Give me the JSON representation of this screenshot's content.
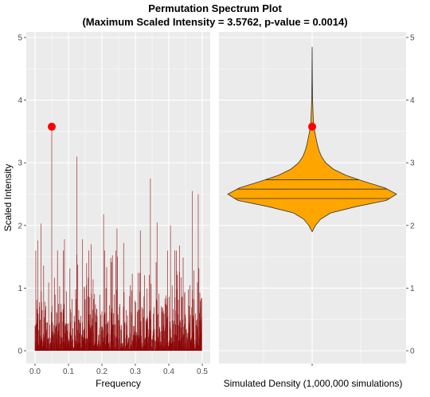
{
  "chart_data": {
    "type": "bar",
    "title": "Permutation Spectrum Plot",
    "subtitle": "(Maximum Scaled Intensity = 3.5762, p-value = 0.0014)",
    "ylabel": "Scaled Intensity",
    "ylim": [
      0,
      5
    ],
    "y_ticks": [
      "0",
      "1",
      "2",
      "3",
      "4",
      "5"
    ],
    "colors": {
      "panel_bg": "#ebebeb",
      "grid": "#ffffff",
      "bar": "#8b0000",
      "marker": "#ff0000",
      "violin_fill": "#ffa500",
      "violin_stroke": "#333333"
    },
    "left_panel": {
      "xlabel": "Frequency",
      "xlim": [
        0,
        0.5
      ],
      "x_ticks": [
        "0.0",
        "0.1",
        "0.2",
        "0.3",
        "0.4",
        "0.5"
      ],
      "observed_peak": {
        "frequency": 0.05,
        "intensity": 3.5762
      },
      "notable_peaks": [
        {
          "frequency": 0.05,
          "intensity": 3.58
        },
        {
          "frequency": 0.125,
          "intensity": 3.1
        },
        {
          "frequency": 0.345,
          "intensity": 2.75
        },
        {
          "frequency": 0.47,
          "intensity": 2.55
        },
        {
          "frequency": 0.488,
          "intensity": 2.5
        },
        {
          "frequency": 0.205,
          "intensity": 2.18
        },
        {
          "frequency": 0.018,
          "intensity": 2.03
        },
        {
          "frequency": 0.365,
          "intensity": 2.05
        },
        {
          "frequency": 0.405,
          "intensity": 2.0
        },
        {
          "frequency": 0.245,
          "intensity": 1.95
        },
        {
          "frequency": 0.315,
          "intensity": 1.92
        },
        {
          "frequency": 0.088,
          "intensity": 1.78
        },
        {
          "frequency": 0.008,
          "intensity": 1.76
        },
        {
          "frequency": 0.142,
          "intensity": 1.78
        },
        {
          "frequency": 0.265,
          "intensity": 1.72
        },
        {
          "frequency": 0.168,
          "intensity": 1.7
        },
        {
          "frequency": 0.432,
          "intensity": 1.68
        }
      ]
    },
    "right_panel": {
      "xlabel": "Simulated Density (1,000,000 simulations)",
      "y_ticks": [
        "0",
        "1",
        "2",
        "3",
        "4",
        "5"
      ],
      "observed_value": 3.5762,
      "violin": {
        "min": 1.9,
        "max": 4.85,
        "quantile_lines": [
          2.43,
          2.58,
          2.73
        ],
        "profile": [
          [
            1.9,
            0.0
          ],
          [
            2.0,
            0.04
          ],
          [
            2.1,
            0.1
          ],
          [
            2.2,
            0.22
          ],
          [
            2.3,
            0.52
          ],
          [
            2.4,
            0.88
          ],
          [
            2.5,
            1.0
          ],
          [
            2.6,
            0.86
          ],
          [
            2.7,
            0.62
          ],
          [
            2.8,
            0.4
          ],
          [
            2.9,
            0.25
          ],
          [
            3.0,
            0.16
          ],
          [
            3.1,
            0.11
          ],
          [
            3.2,
            0.08
          ],
          [
            3.3,
            0.06
          ],
          [
            3.4,
            0.045
          ],
          [
            3.5,
            0.03
          ],
          [
            3.6,
            0.018
          ],
          [
            3.8,
            0.01
          ],
          [
            4.0,
            0.006
          ],
          [
            4.3,
            0.003
          ],
          [
            4.85,
            0.0
          ]
        ]
      }
    }
  }
}
